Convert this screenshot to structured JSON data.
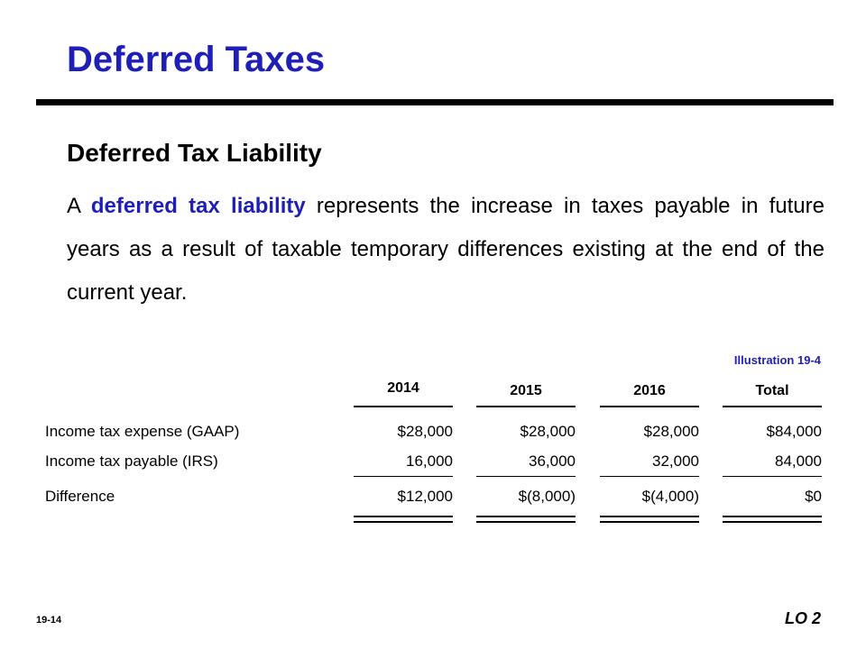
{
  "title": "Deferred Taxes",
  "subtitle": "Deferred Tax Liability",
  "paragraph": {
    "lead": "A ",
    "term": "deferred tax liability",
    "rest": " represents the increase in taxes payable in future years as a result of taxable temporary differences existing at the end of the current year."
  },
  "illustration_label": "Illustration 19-4",
  "table": {
    "columns": [
      "2014",
      "2015",
      "2016",
      "Total"
    ],
    "rows": [
      {
        "label": "Income tax expense (GAAP)",
        "values": [
          "$28,000",
          "$28,000",
          "$28,000",
          "$84,000"
        ]
      },
      {
        "label": "Income tax payable (IRS)",
        "values": [
          "16,000",
          "36,000",
          "32,000",
          "84,000"
        ]
      },
      {
        "label": "Difference",
        "values": [
          "$12,000",
          "$(8,000)",
          "$(4,000)",
          "$0"
        ]
      }
    ]
  },
  "footer": {
    "page_number": "19-14",
    "lo": "LO 2"
  },
  "colors": {
    "accent": "#1f1fb8"
  }
}
